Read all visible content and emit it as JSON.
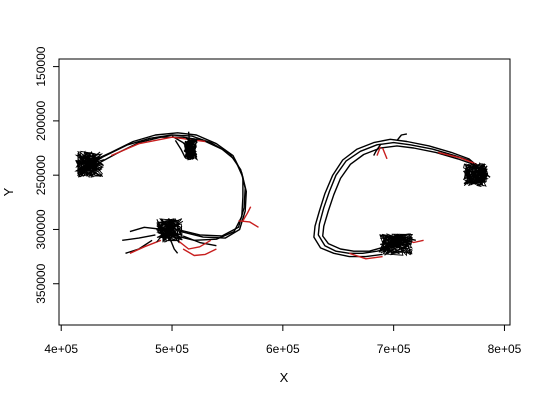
{
  "chart_data": {
    "type": "line",
    "title": "",
    "xlabel": "X",
    "ylabel": "Y",
    "xlim": [
      398000,
      805000
    ],
    "ylim": [
      388000,
      143000
    ],
    "y_reversed": true,
    "grid": false,
    "legend": "none",
    "x_ticks": [
      {
        "value": 400000,
        "label": "4e+05"
      },
      {
        "value": 500000,
        "label": "5e+05"
      },
      {
        "value": 600000,
        "label": "6e+05"
      },
      {
        "value": 700000,
        "label": "7e+05"
      },
      {
        "value": 800000,
        "label": "8e+05"
      }
    ],
    "y_ticks": [
      {
        "value": 150000,
        "label": "150000"
      },
      {
        "value": 200000,
        "label": "200000"
      },
      {
        "value": 250000,
        "label": "250000"
      },
      {
        "value": 300000,
        "label": "300000"
      },
      {
        "value": 350000,
        "label": "350000"
      }
    ],
    "colors": {
      "track": "#000000",
      "track_alt": "#c81e1e"
    },
    "series": [
      {
        "color": "#000000",
        "points": [
          [
            420000,
            245000
          ],
          [
            428000,
            238000
          ],
          [
            440000,
            232000
          ],
          [
            460000,
            222000
          ],
          [
            480000,
            216000
          ],
          [
            500000,
            213000
          ],
          [
            518000,
            214000
          ],
          [
            535000,
            220000
          ],
          [
            552000,
            230000
          ],
          [
            562000,
            245000
          ],
          [
            566000,
            262000
          ],
          [
            565000,
            280000
          ],
          [
            560000,
            298000
          ],
          [
            545000,
            306000
          ],
          [
            525000,
            305000
          ],
          [
            505000,
            300000
          ],
          [
            495000,
            298000
          ]
        ]
      },
      {
        "color": "#000000",
        "points": [
          [
            418000,
            243000
          ],
          [
            430000,
            236000
          ],
          [
            445000,
            229000
          ],
          [
            465000,
            219000
          ],
          [
            485000,
            213000
          ],
          [
            505000,
            211000
          ],
          [
            522000,
            213000
          ],
          [
            540000,
            221000
          ],
          [
            555000,
            232000
          ],
          [
            563000,
            248000
          ],
          [
            567000,
            265000
          ],
          [
            566000,
            283000
          ],
          [
            561000,
            300000
          ],
          [
            548000,
            308000
          ],
          [
            528000,
            307000
          ],
          [
            508000,
            302000
          ]
        ]
      },
      {
        "color": "#000000",
        "points": [
          [
            422000,
            247000
          ],
          [
            432000,
            240000
          ],
          [
            450000,
            230000
          ],
          [
            470000,
            220000
          ],
          [
            490000,
            215000
          ],
          [
            510000,
            215000
          ],
          [
            528000,
            218000
          ],
          [
            545000,
            226000
          ],
          [
            557000,
            236000
          ],
          [
            564000,
            252000
          ],
          [
            564000,
            270000
          ],
          [
            563000,
            288000
          ],
          [
            556000,
            302000
          ],
          [
            540000,
            309000
          ],
          [
            520000,
            310000
          ],
          [
            500000,
            305000
          ]
        ]
      },
      {
        "color": "#000000",
        "points": [
          [
            500000,
            214000
          ],
          [
            510000,
            220000
          ],
          [
            517000,
            228000
          ],
          [
            519000,
            234000
          ]
        ]
      },
      {
        "color": "#000000",
        "points": [
          [
            515000,
            210000
          ],
          [
            516000,
            222000
          ],
          [
            518000,
            232000
          ]
        ]
      },
      {
        "color": "#000000",
        "points": [
          [
            503000,
            218000
          ],
          [
            508000,
            226000
          ],
          [
            512000,
            234000
          ]
        ]
      },
      {
        "color": "#000000",
        "points": [
          [
            485000,
            305000
          ],
          [
            470000,
            308000
          ],
          [
            455000,
            310000
          ]
        ]
      },
      {
        "color": "#000000",
        "points": [
          [
            482000,
            310000
          ],
          [
            470000,
            318000
          ],
          [
            458000,
            322000
          ]
        ]
      },
      {
        "color": "#000000",
        "points": [
          [
            510000,
            306000
          ],
          [
            525000,
            312000
          ],
          [
            540000,
            315000
          ]
        ]
      },
      {
        "color": "#000000",
        "points": [
          [
            498000,
            308000
          ],
          [
            502000,
            318000
          ],
          [
            505000,
            322000
          ]
        ]
      },
      {
        "color": "#000000",
        "points": [
          [
            492000,
            300000
          ],
          [
            475000,
            298000
          ],
          [
            462000,
            302000
          ]
        ]
      },
      {
        "color": "#c81e1e",
        "points": [
          [
            490000,
            310000
          ],
          [
            475000,
            316000
          ],
          [
            462000,
            322000
          ]
        ]
      },
      {
        "color": "#c81e1e",
        "points": [
          [
            505000,
            310000
          ],
          [
            515000,
            318000
          ],
          [
            525000,
            316000
          ],
          [
            535000,
            310000
          ]
        ]
      },
      {
        "color": "#c81e1e",
        "points": [
          [
            560000,
            292000
          ],
          [
            570000,
            293000
          ],
          [
            578000,
            298000
          ]
        ]
      },
      {
        "color": "#c81e1e",
        "points": [
          [
            564000,
            292000
          ],
          [
            568000,
            285000
          ],
          [
            571000,
            279000
          ]
        ]
      },
      {
        "color": "#c81e1e",
        "points": [
          [
            510000,
            318000
          ],
          [
            520000,
            324000
          ],
          [
            530000,
            323000
          ],
          [
            540000,
            318000
          ]
        ]
      },
      {
        "color": "#c81e1e",
        "points": [
          [
            445000,
            232000
          ],
          [
            470000,
            221000
          ],
          [
            500000,
            215000
          ],
          [
            530000,
            219000
          ]
        ]
      },
      {
        "color": "#000000",
        "points": [
          [
            785000,
            250000
          ],
          [
            770000,
            237000
          ],
          [
            755000,
            232000
          ],
          [
            735000,
            226000
          ],
          [
            715000,
            222000
          ],
          [
            700000,
            220000
          ],
          [
            685000,
            222000
          ],
          [
            670000,
            228000
          ],
          [
            657000,
            237000
          ],
          [
            648000,
            250000
          ],
          [
            642000,
            265000
          ],
          [
            637000,
            280000
          ],
          [
            633000,
            295000
          ],
          [
            632000,
            305000
          ],
          [
            638000,
            315000
          ],
          [
            648000,
            320000
          ],
          [
            660000,
            322000
          ],
          [
            672000,
            322000
          ],
          [
            685000,
            320000
          ],
          [
            695000,
            318000
          ]
        ]
      },
      {
        "color": "#000000",
        "points": [
          [
            783000,
            248000
          ],
          [
            768000,
            235000
          ],
          [
            752000,
            229000
          ],
          [
            732000,
            223000
          ],
          [
            712000,
            219000
          ],
          [
            697000,
            217000
          ],
          [
            682000,
            220000
          ],
          [
            667000,
            226000
          ],
          [
            654000,
            236000
          ],
          [
            645000,
            250000
          ],
          [
            638000,
            267000
          ],
          [
            633000,
            283000
          ],
          [
            629000,
            297000
          ],
          [
            628000,
            307000
          ],
          [
            634000,
            317000
          ],
          [
            646000,
            322000
          ],
          [
            660000,
            325000
          ],
          [
            675000,
            325000
          ],
          [
            690000,
            323000
          ]
        ]
      },
      {
        "color": "#000000",
        "points": [
          [
            787000,
            252000
          ],
          [
            772000,
            240000
          ],
          [
            758000,
            235000
          ],
          [
            738000,
            229000
          ],
          [
            718000,
            225000
          ],
          [
            703000,
            223000
          ],
          [
            688000,
            225000
          ],
          [
            673000,
            231000
          ],
          [
            661000,
            240000
          ],
          [
            652000,
            253000
          ],
          [
            646000,
            268000
          ],
          [
            641000,
            283000
          ],
          [
            637000,
            297000
          ],
          [
            636000,
            306000
          ],
          [
            641000,
            313000
          ],
          [
            652000,
            318000
          ],
          [
            664000,
            320000
          ],
          [
            678000,
            320000
          ],
          [
            692000,
            316000
          ]
        ]
      },
      {
        "color": "#000000",
        "points": [
          [
            703000,
            218000
          ],
          [
            707000,
            213000
          ],
          [
            712000,
            212000
          ]
        ]
      },
      {
        "color": "#000000",
        "points": [
          [
            688000,
            222000
          ],
          [
            684000,
            228000
          ],
          [
            682000,
            232000
          ]
        ]
      },
      {
        "color": "#000000",
        "points": [
          [
            700000,
            305000
          ],
          [
            712000,
            308000
          ],
          [
            720000,
            310000
          ]
        ]
      },
      {
        "color": "#000000",
        "points": [
          [
            692000,
            318000
          ],
          [
            700000,
            322000
          ],
          [
            708000,
            320000
          ]
        ]
      },
      {
        "color": "#c81e1e",
        "points": [
          [
            690000,
            225000
          ],
          [
            694000,
            235000
          ]
        ]
      },
      {
        "color": "#c81e1e",
        "points": [
          [
            688000,
            224000
          ],
          [
            685000,
            232000
          ]
        ]
      },
      {
        "color": "#c81e1e",
        "points": [
          [
            660000,
            322000
          ],
          [
            675000,
            327000
          ],
          [
            690000,
            325000
          ]
        ]
      },
      {
        "color": "#c81e1e",
        "points": [
          [
            705000,
            307000
          ],
          [
            718000,
            312000
          ],
          [
            727000,
            310000
          ]
        ]
      },
      {
        "color": "#c81e1e",
        "points": [
          [
            775000,
            240000
          ],
          [
            760000,
            234000
          ],
          [
            740000,
            229000
          ]
        ]
      }
    ],
    "clusters": [
      {
        "color": "#000000",
        "cx": 426000,
        "cy": 240000,
        "rx": 13000,
        "ry": 12000
      },
      {
        "color": "#000000",
        "cx": 498000,
        "cy": 301000,
        "rx": 12000,
        "ry": 11000
      },
      {
        "color": "#000000",
        "cx": 517000,
        "cy": 226000,
        "rx": 6000,
        "ry": 10000
      },
      {
        "color": "#000000",
        "cx": 774000,
        "cy": 250000,
        "rx": 11000,
        "ry": 11000
      },
      {
        "color": "#000000",
        "cx": 702000,
        "cy": 314000,
        "rx": 15000,
        "ry": 10000
      }
    ]
  }
}
